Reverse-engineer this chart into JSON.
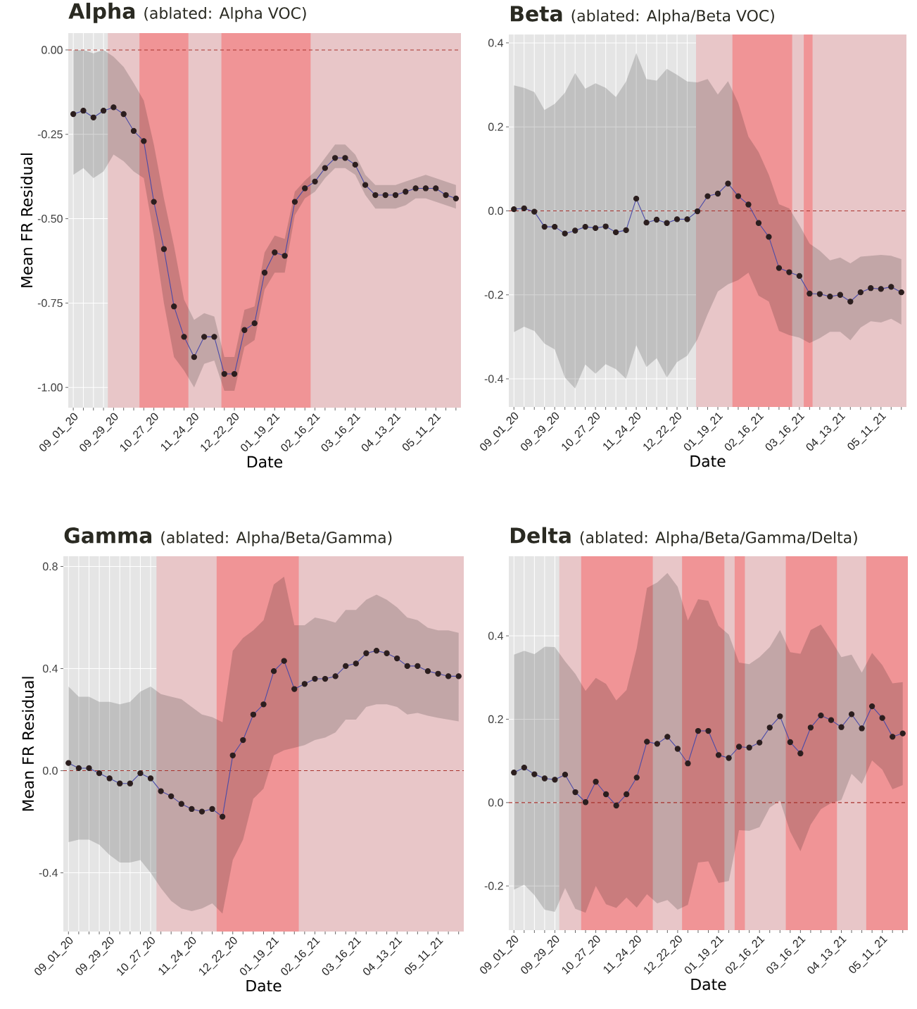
{
  "chart_data": [
    {
      "type": "line",
      "title": "Alpha",
      "subtitle": "(ablated: Alpha VOC)",
      "xlabel": "Date",
      "ylabel": "Mean FR Residual",
      "grid": true,
      "marker": "circle",
      "categories": [
        "09_01_20",
        null,
        null,
        null,
        "09_29_20",
        null,
        null,
        null,
        "10_27_20",
        null,
        null,
        null,
        "11_24_20",
        null,
        null,
        null,
        "12_22_20",
        null,
        null,
        null,
        "01_19_21",
        null,
        null,
        null,
        "02_16_21",
        null,
        null,
        null,
        "03_16_21",
        null,
        null,
        null,
        "04_13_21",
        null,
        null,
        null,
        "05_11_21",
        null,
        null
      ],
      "ylim": [
        -1.06,
        0.05
      ],
      "yticks": [
        {
          "value": 0,
          "label": "0.00"
        },
        -0.25,
        {
          "value": -0.5,
          "label": "-0.50"
        },
        -0.75,
        {
          "value": -1,
          "label": "-1.00"
        }
      ],
      "ref_lines": [
        {
          "axis": "y",
          "value": 0,
          "color": "#a8322d",
          "line_style": "dashed"
        }
      ],
      "series": [
        {
          "color": "#4b4ba8",
          "values": [
            -0.19,
            -0.18,
            -0.2,
            -0.18,
            -0.17,
            -0.19,
            -0.24,
            -0.27,
            -0.45,
            -0.59,
            -0.76,
            -0.85,
            -0.91,
            -0.85,
            -0.85,
            -0.96,
            -0.96,
            -0.83,
            -0.81,
            -0.66,
            -0.6,
            -0.61,
            -0.45,
            -0.41,
            -0.39,
            -0.35,
            -0.32,
            -0.32,
            -0.34,
            -0.4,
            -0.43,
            -0.43,
            -0.43,
            -0.42,
            -0.41,
            -0.41,
            -0.41,
            -0.43,
            -0.44
          ],
          "upper": [
            0,
            0,
            -0.01,
            0,
            -0.02,
            -0.05,
            -0.098,
            -0.15,
            -0.28,
            -0.44,
            -0.58,
            -0.74,
            -0.8,
            -0.78,
            -0.79,
            -0.91,
            -0.91,
            -0.77,
            -0.76,
            -0.6,
            -0.55,
            -0.56,
            -0.42,
            -0.387,
            -0.36,
            -0.32,
            -0.28,
            -0.28,
            -0.31,
            -0.37,
            -0.4,
            -0.4,
            -0.4,
            -0.39,
            -0.38,
            -0.37,
            -0.38,
            -0.39,
            -0.4
          ],
          "lower": [
            -0.37,
            -0.35,
            -0.38,
            -0.36,
            -0.31,
            -0.33,
            -0.36,
            -0.38,
            -0.55,
            -0.75,
            -0.91,
            -0.95,
            -1.0,
            -0.93,
            -0.92,
            -1.01,
            -1.01,
            -0.88,
            -0.86,
            -0.71,
            -0.66,
            -0.66,
            -0.49,
            -0.44,
            -0.42,
            -0.38,
            -0.35,
            -0.35,
            -0.37,
            -0.43,
            -0.47,
            -0.47,
            -0.47,
            -0.46,
            -0.44,
            -0.44,
            -0.45,
            -0.46,
            -0.47
          ]
        }
      ]
    },
    {
      "type": "line",
      "title": "Beta",
      "subtitle": "(ablated: Alpha/Beta VOC)",
      "xlabel": "Date",
      "grid": true,
      "marker": "circle",
      "categories": [
        "09_01_20",
        null,
        null,
        null,
        "09_29_20",
        null,
        null,
        null,
        "10_27_20",
        null,
        null,
        null,
        "11_24_20",
        null,
        null,
        null,
        "12_22_20",
        null,
        null,
        null,
        "01_19_21",
        null,
        null,
        null,
        "02_16_21",
        null,
        null,
        null,
        "03_16_21",
        null,
        null,
        null,
        "04_13_21",
        null,
        null,
        null,
        "05_11_21",
        null,
        null
      ],
      "ylim": [
        -0.467,
        0.42
      ],
      "yticks": [
        0.4,
        0.2,
        {
          "value": 0,
          "label": "0.0"
        },
        -0.2,
        -0.4
      ],
      "ref_lines": [
        {
          "axis": "y",
          "value": 0,
          "color": "#a8322d",
          "line_style": "dashed"
        }
      ],
      "series": [
        {
          "color": "#4b4ba8",
          "values": [
            0.004,
            0.006,
            -0.002,
            -0.038,
            -0.038,
            -0.054,
            -0.047,
            -0.038,
            -0.041,
            -0.037,
            -0.051,
            -0.046,
            0.029,
            -0.028,
            -0.021,
            -0.029,
            -0.02,
            -0.02,
            -0.001,
            0.035,
            0.041,
            0.065,
            0.035,
            0.015,
            -0.029,
            -0.062,
            -0.136,
            -0.146,
            -0.155,
            -0.197,
            -0.198,
            -0.204,
            -0.2,
            -0.216,
            -0.194,
            -0.184,
            -0.186,
            -0.181,
            -0.194
          ],
          "upper": [
            0.299,
            0.293,
            0.283,
            0.24,
            0.255,
            0.281,
            0.328,
            0.291,
            0.304,
            0.293,
            0.271,
            0.308,
            0.376,
            0.314,
            0.31,
            0.338,
            0.324,
            0.308,
            0.306,
            0.314,
            0.277,
            0.309,
            0.257,
            0.177,
            0.14,
            0.086,
            0.016,
            0.006,
            -0.034,
            -0.078,
            -0.095,
            -0.118,
            -0.111,
            -0.125,
            -0.109,
            -0.107,
            -0.105,
            -0.107,
            -0.115
          ],
          "lower": [
            -0.289,
            -0.276,
            -0.286,
            -0.316,
            -0.33,
            -0.397,
            -0.423,
            -0.366,
            -0.388,
            -0.365,
            -0.377,
            -0.4,
            -0.32,
            -0.372,
            -0.351,
            -0.397,
            -0.36,
            -0.345,
            -0.306,
            -0.246,
            -0.192,
            -0.175,
            -0.165,
            -0.147,
            -0.202,
            -0.216,
            -0.286,
            -0.296,
            -0.302,
            -0.315,
            -0.303,
            -0.288,
            -0.288,
            -0.308,
            -0.278,
            -0.263,
            -0.266,
            -0.257,
            -0.271
          ]
        }
      ]
    },
    {
      "type": "line",
      "title": "Gamma",
      "subtitle": "(ablated: Alpha/Beta/Gamma)",
      "xlabel": "Date",
      "ylabel": "Mean FR Residual",
      "grid": true,
      "marker": "circle",
      "categories": [
        "09_01_20",
        null,
        null,
        null,
        "09_29_20",
        null,
        null,
        null,
        "10_27_20",
        null,
        null,
        null,
        "11_24_20",
        null,
        null,
        null,
        "12_22_20",
        null,
        null,
        null,
        "01_19_21",
        null,
        null,
        null,
        "02_16_21",
        null,
        null,
        null,
        "03_16_21",
        null,
        null,
        null,
        "04_13_21",
        null,
        null,
        null,
        "05_11_21",
        null,
        null
      ],
      "ylim": [
        -0.63,
        0.84
      ],
      "yticks": [
        0.8,
        0.4,
        {
          "value": 0,
          "label": "0.0"
        },
        -0.4
      ],
      "ref_lines": [
        {
          "axis": "y",
          "value": 0,
          "color": "#a8322d",
          "line_style": "dashed"
        }
      ],
      "series": [
        {
          "color": "#4b4ba8",
          "values": [
            0.03,
            0.01,
            0.01,
            -0.01,
            -0.03,
            -0.05,
            -0.05,
            -0.01,
            -0.03,
            -0.08,
            -0.1,
            -0.13,
            -0.15,
            -0.16,
            -0.15,
            -0.18,
            0.06,
            0.12,
            0.22,
            0.26,
            0.39,
            0.43,
            0.32,
            0.34,
            0.36,
            0.36,
            0.37,
            0.41,
            0.42,
            0.46,
            0.47,
            0.46,
            0.44,
            0.41,
            0.41,
            0.39,
            0.38,
            0.37,
            0.37
          ],
          "upper": [
            0.33,
            0.29,
            0.29,
            0.27,
            0.27,
            0.26,
            0.27,
            0.31,
            0.33,
            0.3,
            0.29,
            0.28,
            0.25,
            0.22,
            0.21,
            0.19,
            0.47,
            0.52,
            0.55,
            0.59,
            0.73,
            0.76,
            0.57,
            0.57,
            0.6,
            0.592,
            0.58,
            0.63,
            0.63,
            0.67,
            0.69,
            0.67,
            0.64,
            0.6,
            0.59,
            0.56,
            0.55,
            0.55,
            0.54
          ],
          "lower": [
            -0.28,
            -0.27,
            -0.27,
            -0.29,
            -0.33,
            -0.36,
            -0.36,
            -0.35,
            -0.4,
            -0.46,
            -0.51,
            -0.54,
            -0.55,
            -0.54,
            -0.52,
            -0.56,
            -0.35,
            -0.27,
            -0.11,
            -0.07,
            0.06,
            0.08,
            0.09,
            0.1,
            0.12,
            0.13,
            0.15,
            0.2,
            0.2,
            0.25,
            0.26,
            0.26,
            0.25,
            0.22,
            0.226,
            0.215,
            0.207,
            0.2,
            0.193
          ]
        }
      ]
    },
    {
      "type": "line",
      "title": "Delta",
      "subtitle": "(ablated: Alpha/Beta/Gamma/Delta)",
      "xlabel": "Date",
      "grid": true,
      "marker": "circle",
      "categories": [
        "09_01_20",
        null,
        null,
        null,
        "09_29_20",
        null,
        null,
        null,
        "10_27_20",
        null,
        null,
        null,
        "11_24_20",
        null,
        null,
        null,
        "12_22_20",
        null,
        null,
        null,
        "01_19_21",
        null,
        null,
        null,
        "02_16_21",
        null,
        null,
        null,
        "03_16_21",
        null,
        null,
        null,
        "04_13_21",
        null,
        null,
        null,
        "05_11_21",
        null,
        null
      ],
      "ylim": [
        -0.306,
        0.591
      ],
      "yticks": [
        0.4,
        0.2,
        {
          "value": 0,
          "label": "0.0"
        },
        -0.2
      ],
      "ref_lines": [
        {
          "axis": "y",
          "value": 0,
          "color": "#a8322d",
          "line_style": "dashed"
        }
      ],
      "series": [
        {
          "color": "#4b4ba8",
          "values": [
            0.072,
            0.084,
            0.068,
            0.058,
            0.055,
            0.067,
            0.025,
            0.001,
            0.05,
            0.02,
            -0.007,
            0.02,
            0.06,
            0.146,
            0.141,
            0.158,
            0.129,
            0.094,
            0.172,
            0.172,
            0.114,
            0.107,
            0.134,
            0.132,
            0.144,
            0.18,
            0.207,
            0.145,
            0.118,
            0.18,
            0.209,
            0.198,
            0.181,
            0.212,
            0.178,
            0.231,
            0.203,
            0.158,
            0.166
          ],
          "upper": [
            0.355,
            0.364,
            0.356,
            0.374,
            0.373,
            0.339,
            0.309,
            0.268,
            0.299,
            0.285,
            0.245,
            0.27,
            0.37,
            0.515,
            0.528,
            0.551,
            0.518,
            0.437,
            0.488,
            0.484,
            0.424,
            0.403,
            0.336,
            0.332,
            0.349,
            0.373,
            0.414,
            0.361,
            0.357,
            0.414,
            0.427,
            0.39,
            0.349,
            0.355,
            0.312,
            0.359,
            0.33,
            0.286,
            0.289
          ],
          "lower": [
            -0.209,
            -0.197,
            -0.222,
            -0.257,
            -0.262,
            -0.205,
            -0.255,
            -0.264,
            -0.2,
            -0.244,
            -0.253,
            -0.228,
            -0.252,
            -0.22,
            -0.242,
            -0.234,
            -0.257,
            -0.245,
            -0.144,
            -0.141,
            -0.193,
            -0.188,
            -0.066,
            -0.068,
            -0.059,
            -0.012,
            0.005,
            -0.07,
            -0.117,
            -0.053,
            -0.016,
            -0.001,
            0.006,
            0.069,
            0.045,
            0.101,
            0.079,
            0.032,
            0.042
          ]
        }
      ]
    }
  ]
}
